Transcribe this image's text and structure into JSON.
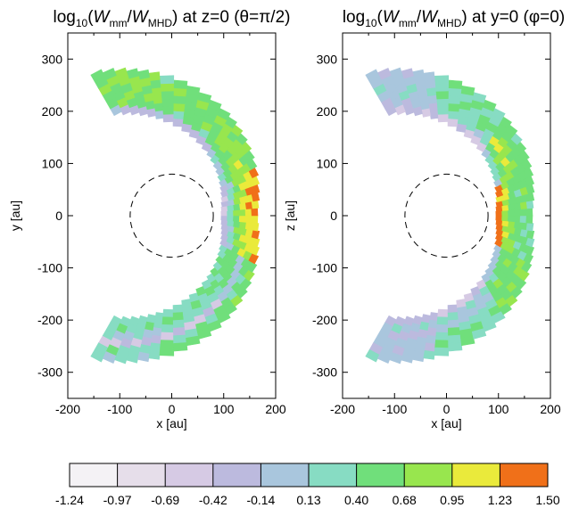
{
  "chart_data": [
    {
      "type": "heatmap",
      "title": {
        "pre": "log",
        "sub10": "10",
        "open": "(",
        "w1": "W",
        "s1": "mm",
        "slash": "/",
        "w2": "W",
        "s2": "MHD",
        "post": ") at z=0 (θ=π/2)"
      },
      "xlabel": "x [au]",
      "ylabel": "y [au]",
      "xlim": [
        -200,
        200
      ],
      "ylim": [
        -350,
        350
      ],
      "xticks": [
        "-200",
        "-100",
        "0",
        "100",
        "200"
      ],
      "yticks": [
        "300",
        "200",
        "100",
        "0",
        "-100",
        "-200",
        "-300"
      ],
      "circle": {
        "center": [
          0,
          0
        ],
        "radius": 80,
        "style": "dashed"
      },
      "shell": {
        "phi_range_deg": [
          -120,
          120
        ]
      },
      "bands": [
        {
          "phi_from": -120,
          "phi_to": -95,
          "values": [
            0.26,
            0.4,
            0.05,
            -0.4,
            0.3,
            0.13
          ]
        },
        {
          "phi_from": -95,
          "phi_to": -60,
          "values": [
            0.3,
            0.45,
            0.25,
            -0.5,
            0.35,
            0.55
          ]
        },
        {
          "phi_from": -60,
          "phi_to": -30,
          "values": [
            0.35,
            0.5,
            0.5,
            0.0,
            0.45,
            0.7
          ]
        },
        {
          "phi_from": -30,
          "phi_to": 0,
          "values": [
            -0.3,
            0.2,
            0.6,
            0.9,
            1.05,
            1.2
          ]
        },
        {
          "phi_from": 0,
          "phi_to": 30,
          "values": [
            -0.4,
            0.2,
            0.7,
            0.95,
            1.15,
            1.3
          ]
        },
        {
          "phi_from": 30,
          "phi_to": 60,
          "values": [
            0.1,
            0.55,
            0.75,
            0.85,
            0.7,
            0.6
          ]
        },
        {
          "phi_from": 60,
          "phi_to": 95,
          "values": [
            -0.3,
            0.45,
            0.6,
            0.55,
            0.7,
            0.5
          ]
        },
        {
          "phi_from": 95,
          "phi_to": 120,
          "values": [
            -0.2,
            0.6,
            0.65,
            0.7,
            0.75,
            0.6
          ]
        }
      ]
    },
    {
      "type": "heatmap",
      "title": {
        "pre": "log",
        "sub10": "10",
        "open": "(",
        "w1": "W",
        "s1": "mm",
        "slash": "/",
        "w2": "W",
        "s2": "MHD",
        "post": ") at y=0 (φ=0)"
      },
      "xlabel": "x [au]",
      "ylabel": "z [au]",
      "xlim": [
        -200,
        200
      ],
      "ylim": [
        -350,
        350
      ],
      "xticks": [
        "-200",
        "-100",
        "0",
        "100",
        "200"
      ],
      "yticks": [
        "300",
        "200",
        "100",
        "0",
        "-100",
        "-200",
        "-300"
      ],
      "circle": {
        "center": [
          0,
          0
        ],
        "radius": 80,
        "style": "dashed"
      },
      "shell": {
        "phi_range_deg": [
          -120,
          120
        ]
      },
      "bands": [
        {
          "phi_from": -120,
          "phi_to": -95,
          "values": [
            -0.3,
            0.1,
            -0.25,
            0.0,
            -0.15,
            0.05
          ]
        },
        {
          "phi_from": -95,
          "phi_to": -60,
          "values": [
            -0.5,
            0.2,
            0.0,
            0.3,
            0.45,
            0.3
          ]
        },
        {
          "phi_from": -60,
          "phi_to": -30,
          "values": [
            0.0,
            0.5,
            0.6,
            0.55,
            0.7,
            0.6
          ]
        },
        {
          "phi_from": -30,
          "phi_to": 0,
          "values": [
            1.4,
            0.9,
            0.7,
            0.5,
            0.4,
            0.45
          ]
        },
        {
          "phi_from": 0,
          "phi_to": 30,
          "values": [
            1.3,
            1.0,
            0.55,
            0.5,
            0.6,
            0.5
          ]
        },
        {
          "phi_from": 30,
          "phi_to": 60,
          "values": [
            0.2,
            0.6,
            0.95,
            0.7,
            0.55,
            0.5
          ]
        },
        {
          "phi_from": 60,
          "phi_to": 95,
          "values": [
            -0.5,
            0.2,
            0.35,
            0.45,
            0.3,
            0.4
          ]
        },
        {
          "phi_from": 95,
          "phi_to": 120,
          "values": [
            -0.4,
            -0.1,
            0.05,
            0.15,
            0.0,
            -0.1
          ]
        }
      ]
    }
  ],
  "colorbar": {
    "ticks": [
      "-1.24",
      "-0.97",
      "-0.69",
      "-0.42",
      "-0.14",
      "0.13",
      "0.40",
      "0.68",
      "0.95",
      "1.23",
      "1.50"
    ],
    "bins": [
      -1.24,
      -0.97,
      -0.69,
      -0.42,
      -0.14,
      0.13,
      0.4,
      0.68,
      0.95,
      1.23,
      1.5
    ],
    "colors": [
      "#f4f2f5",
      "#e6deea",
      "#d6cae4",
      "#bcbade",
      "#a9c6dd",
      "#87dcc3",
      "#70df7b",
      "#98e64e",
      "#eaea3b",
      "#f07019"
    ]
  }
}
